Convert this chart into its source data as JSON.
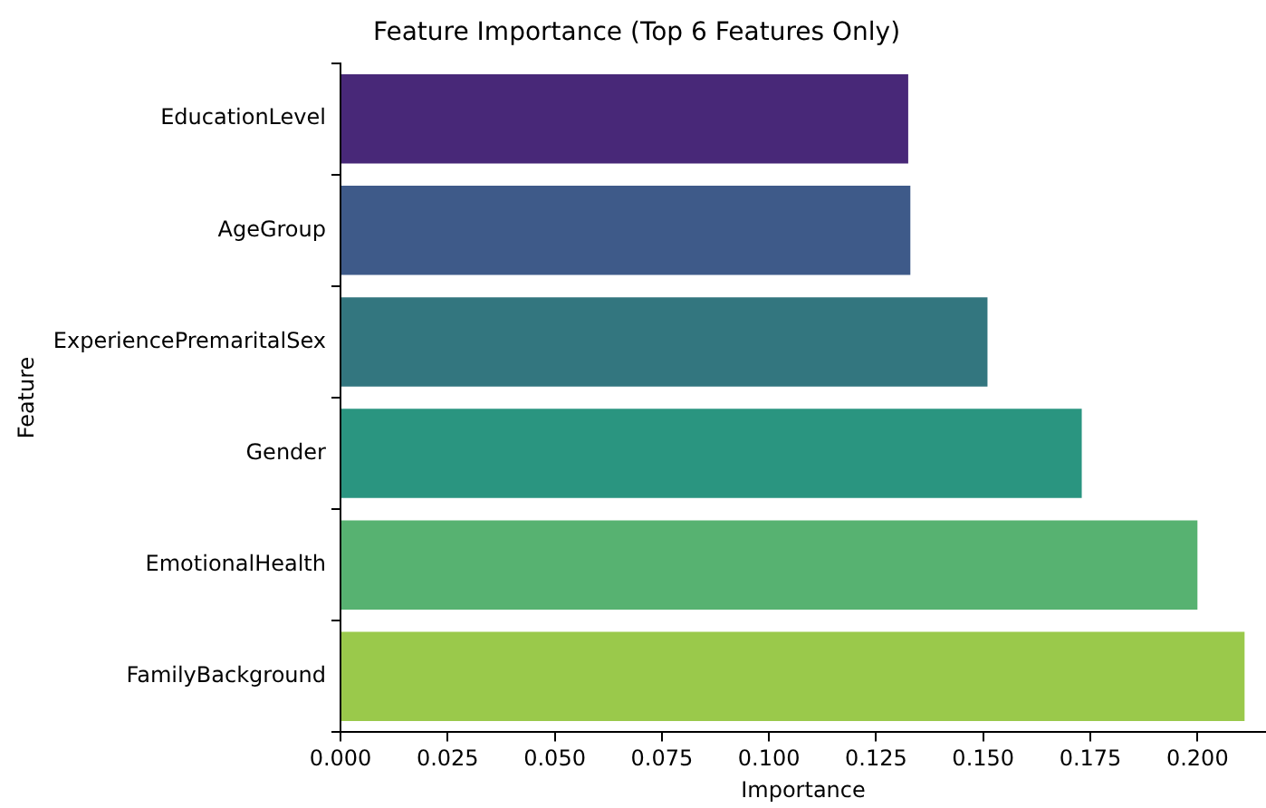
{
  "chart_data": {
    "type": "bar",
    "orientation": "horizontal",
    "title": "Feature Importance (Top 6 Features Only)",
    "xlabel": "Importance",
    "ylabel": "Feature",
    "categories": [
      "EducationLevel",
      "AgeGroup",
      "ExperiencePremaritalSex",
      "Gender",
      "EmotionalHealth",
      "FamilyBackground"
    ],
    "values": [
      0.1325,
      0.133,
      0.151,
      0.173,
      0.2,
      0.211
    ],
    "colors": [
      "#482878",
      "#3e5a89",
      "#33767f",
      "#2a9580",
      "#57b271",
      "#9ac94b"
    ],
    "xlim": [
      0,
      0.216
    ],
    "xticks": [
      {
        "value": 0,
        "label": "0.000"
      },
      {
        "value": 0.025,
        "label": "0.025"
      },
      {
        "value": 0.05,
        "label": "0.050"
      },
      {
        "value": 0.075,
        "label": "0.075"
      },
      {
        "value": 0.1,
        "label": "0.100"
      },
      {
        "value": 0.125,
        "label": "0.125"
      },
      {
        "value": 0.15,
        "label": "0.150"
      },
      {
        "value": 0.175,
        "label": "0.175"
      },
      {
        "value": 0.2,
        "label": "0.200"
      }
    ],
    "grid": false,
    "legend": false
  }
}
